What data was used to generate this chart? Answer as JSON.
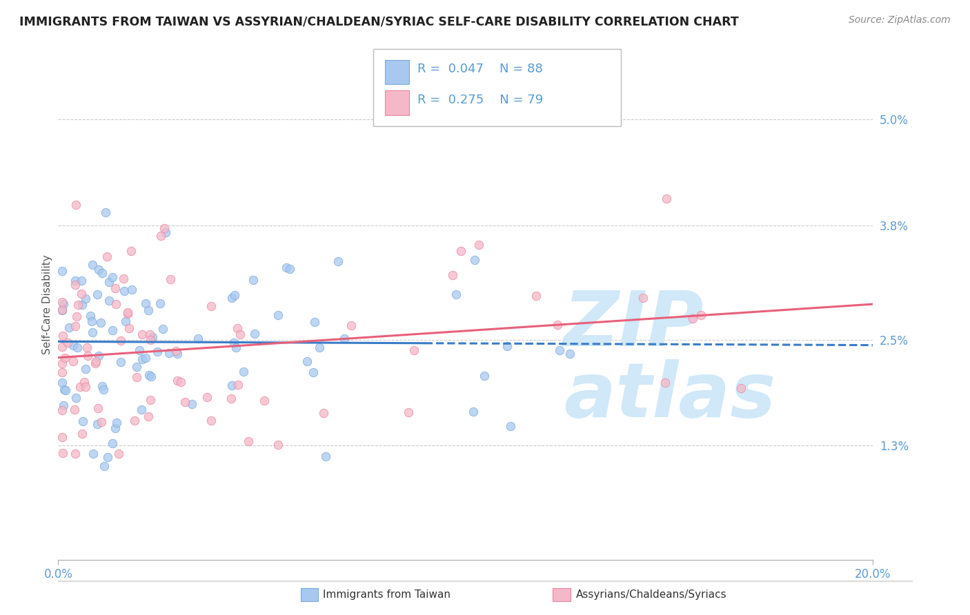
{
  "title": "IMMIGRANTS FROM TAIWAN VS ASSYRIAN/CHALDEAN/SYRIAC SELF-CARE DISABILITY CORRELATION CHART",
  "source": "Source: ZipAtlas.com",
  "ylabel": "Self-Care Disability",
  "xlim": [
    0.0,
    0.2
  ],
  "ylim": [
    0.0,
    0.058
  ],
  "series1_color": "#A8C8F0",
  "series1_edge": "#7AAAD8",
  "series2_color": "#F5B8C8",
  "series2_edge": "#E885A0",
  "trendline1_color": "#3A7CC8",
  "trendline2_color": "#E8607A",
  "legend_r1": "0.047",
  "legend_n1": "88",
  "legend_r2": "0.275",
  "legend_n2": "79",
  "ytick_vals": [
    0.013,
    0.025,
    0.038,
    0.05
  ],
  "ytick_labels": [
    "1.3%",
    "2.5%",
    "3.8%",
    "5.0%"
  ],
  "tick_color": "#5B9BD5",
  "watermark_color": "#D0E8F8",
  "bg_color": "white"
}
